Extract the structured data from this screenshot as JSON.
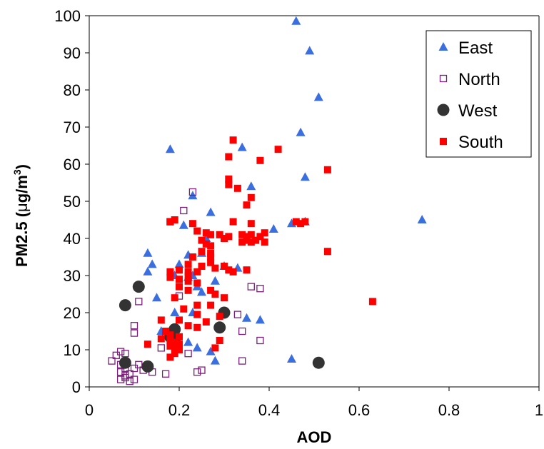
{
  "chart_data": {
    "type": "scatter",
    "xlabel": "AOD",
    "ylabel": {
      "main": "PM2.5 (",
      "mu": "μ",
      "unit": "g/m",
      "sup": "3",
      "close": ")"
    },
    "xlim": [
      0,
      1
    ],
    "ylim": [
      0,
      100
    ],
    "x_ticks": [
      0,
      0.2,
      0.4,
      0.6,
      0.8,
      1
    ],
    "x_tick_labels": [
      "0",
      "0.2",
      "0.4",
      "0.6",
      "0.8",
      "1"
    ],
    "y_ticks": [
      0,
      10,
      20,
      30,
      40,
      50,
      60,
      70,
      80,
      90,
      100
    ],
    "y_tick_labels": [
      "0",
      "10",
      "20",
      "30",
      "40",
      "50",
      "60",
      "70",
      "80",
      "90",
      "100"
    ],
    "grid": false,
    "legend_position": "top-right",
    "series": [
      {
        "name": "East",
        "marker": "triangle",
        "color": "#3b6fe0",
        "points": [
          [
            0.46,
            98.5
          ],
          [
            0.49,
            90.5
          ],
          [
            0.51,
            78
          ],
          [
            0.47,
            68.5
          ],
          [
            0.18,
            64
          ],
          [
            0.34,
            64.5
          ],
          [
            0.48,
            56.5
          ],
          [
            0.36,
            54
          ],
          [
            0.23,
            51.5
          ],
          [
            0.27,
            47
          ],
          [
            0.74,
            45
          ],
          [
            0.41,
            42.5
          ],
          [
            0.45,
            44
          ],
          [
            0.48,
            44.5
          ],
          [
            0.21,
            43.5
          ],
          [
            0.26,
            40
          ],
          [
            0.22,
            35.5
          ],
          [
            0.25,
            36
          ],
          [
            0.13,
            36
          ],
          [
            0.14,
            33
          ],
          [
            0.3,
            32.5
          ],
          [
            0.33,
            32
          ],
          [
            0.13,
            31
          ],
          [
            0.19,
            30
          ],
          [
            0.22,
            29.5
          ],
          [
            0.28,
            28.5
          ],
          [
            0.24,
            27
          ],
          [
            0.25,
            25.5
          ],
          [
            0.15,
            24
          ],
          [
            0.19,
            20
          ],
          [
            0.23,
            20
          ],
          [
            0.35,
            18.5
          ],
          [
            0.38,
            18
          ],
          [
            0.16,
            15
          ],
          [
            0.18,
            14
          ],
          [
            0.22,
            12
          ],
          [
            0.24,
            10.5
          ],
          [
            0.27,
            9.5
          ],
          [
            0.45,
            7.5
          ],
          [
            0.28,
            7
          ],
          [
            0.2,
            33
          ],
          [
            0.23,
            30
          ]
        ]
      },
      {
        "name": "North",
        "marker": "open-square",
        "color": "#7b1e7a",
        "points": [
          [
            0.23,
            52.5
          ],
          [
            0.21,
            47.5
          ],
          [
            0.18,
            44.5
          ],
          [
            0.36,
            27
          ],
          [
            0.38,
            26.5
          ],
          [
            0.2,
            24.5
          ],
          [
            0.11,
            23
          ],
          [
            0.33,
            19.5
          ],
          [
            0.1,
            16.5
          ],
          [
            0.1,
            14.5
          ],
          [
            0.34,
            15
          ],
          [
            0.17,
            14
          ],
          [
            0.19,
            13
          ],
          [
            0.38,
            12.5
          ],
          [
            0.22,
            9
          ],
          [
            0.16,
            10.5
          ],
          [
            0.05,
            7
          ],
          [
            0.06,
            8.5
          ],
          [
            0.07,
            9.5
          ],
          [
            0.08,
            9
          ],
          [
            0.07,
            6
          ],
          [
            0.08,
            5
          ],
          [
            0.07,
            4
          ],
          [
            0.08,
            3
          ],
          [
            0.07,
            2
          ],
          [
            0.08,
            2.5
          ],
          [
            0.09,
            3.5
          ],
          [
            0.1,
            5
          ],
          [
            0.11,
            6
          ],
          [
            0.12,
            4.5
          ],
          [
            0.13,
            5.5
          ],
          [
            0.14,
            4
          ],
          [
            0.24,
            4
          ],
          [
            0.25,
            4.5
          ],
          [
            0.34,
            7
          ],
          [
            0.17,
            3.5
          ],
          [
            0.1,
            2
          ],
          [
            0.09,
            1.5
          ]
        ]
      },
      {
        "name": "West",
        "marker": "circle",
        "color": "#333333",
        "points": [
          [
            0.11,
            27
          ],
          [
            0.08,
            22
          ],
          [
            0.3,
            20
          ],
          [
            0.19,
            15.5
          ],
          [
            0.29,
            16
          ],
          [
            0.18,
            13.5
          ],
          [
            0.19,
            12
          ],
          [
            0.08,
            6.5
          ],
          [
            0.13,
            5.5
          ],
          [
            0.51,
            6.5
          ]
        ]
      },
      {
        "name": "South",
        "marker": "filled-square",
        "color": "#ff0000",
        "points": [
          [
            0.32,
            66.5
          ],
          [
            0.42,
            64
          ],
          [
            0.31,
            62
          ],
          [
            0.38,
            61
          ],
          [
            0.31,
            56
          ],
          [
            0.31,
            54.5
          ],
          [
            0.33,
            53.5
          ],
          [
            0.53,
            58.5
          ],
          [
            0.36,
            51
          ],
          [
            0.35,
            49
          ],
          [
            0.18,
            44.5
          ],
          [
            0.19,
            45
          ],
          [
            0.23,
            44
          ],
          [
            0.32,
            44.5
          ],
          [
            0.36,
            44
          ],
          [
            0.46,
            44.5
          ],
          [
            0.47,
            44
          ],
          [
            0.48,
            44.5
          ],
          [
            0.24,
            42
          ],
          [
            0.26,
            41.5
          ],
          [
            0.27,
            41
          ],
          [
            0.29,
            41
          ],
          [
            0.31,
            40.5
          ],
          [
            0.34,
            41
          ],
          [
            0.35,
            40.5
          ],
          [
            0.36,
            41
          ],
          [
            0.38,
            40.5
          ],
          [
            0.39,
            41.5
          ],
          [
            0.25,
            39.5
          ],
          [
            0.26,
            38.5
          ],
          [
            0.27,
            38
          ],
          [
            0.3,
            40
          ],
          [
            0.34,
            39
          ],
          [
            0.35,
            39.5
          ],
          [
            0.36,
            39
          ],
          [
            0.37,
            39.5
          ],
          [
            0.39,
            39
          ],
          [
            0.53,
            36.5
          ],
          [
            0.25,
            36.5
          ],
          [
            0.27,
            36
          ],
          [
            0.23,
            35
          ],
          [
            0.27,
            35
          ],
          [
            0.27,
            33.5
          ],
          [
            0.22,
            33
          ],
          [
            0.25,
            32.5
          ],
          [
            0.28,
            32
          ],
          [
            0.3,
            32.5
          ],
          [
            0.31,
            31.5
          ],
          [
            0.32,
            31
          ],
          [
            0.35,
            31.5
          ],
          [
            0.18,
            31
          ],
          [
            0.2,
            31.5
          ],
          [
            0.22,
            31
          ],
          [
            0.24,
            31
          ],
          [
            0.22,
            30
          ],
          [
            0.18,
            29.5
          ],
          [
            0.2,
            29
          ],
          [
            0.22,
            28.5
          ],
          [
            0.24,
            28
          ],
          [
            0.2,
            27
          ],
          [
            0.22,
            26
          ],
          [
            0.27,
            26
          ],
          [
            0.28,
            25
          ],
          [
            0.3,
            24
          ],
          [
            0.19,
            24
          ],
          [
            0.24,
            22
          ],
          [
            0.27,
            22
          ],
          [
            0.21,
            21
          ],
          [
            0.24,
            19.5
          ],
          [
            0.29,
            19
          ],
          [
            0.16,
            18
          ],
          [
            0.2,
            18
          ],
          [
            0.26,
            17.5
          ],
          [
            0.22,
            16.5
          ],
          [
            0.24,
            16
          ],
          [
            0.17,
            15
          ],
          [
            0.18,
            14
          ],
          [
            0.2,
            13.5
          ],
          [
            0.16,
            13
          ],
          [
            0.18,
            12.5
          ],
          [
            0.19,
            12
          ],
          [
            0.2,
            11.5
          ],
          [
            0.18,
            11
          ],
          [
            0.13,
            11.5
          ],
          [
            0.19,
            10.5
          ],
          [
            0.2,
            10
          ],
          [
            0.19,
            9
          ],
          [
            0.18,
            8
          ],
          [
            0.28,
            10.5
          ],
          [
            0.29,
            12.5
          ],
          [
            0.63,
            23
          ]
        ]
      }
    ]
  }
}
